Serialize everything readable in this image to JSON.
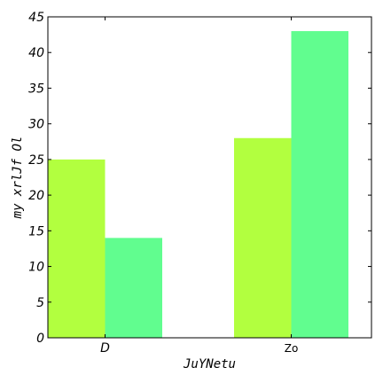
{
  "chart_data": {
    "type": "bar",
    "title": "",
    "xlabel": "JuYNetu",
    "ylabel": "my  xrlJf  Ol",
    "categories": [
      "D",
      "Zo"
    ],
    "series": [
      {
        "values": [
          25,
          28
        ],
        "color": "#b2ff3f"
      },
      {
        "values": [
          14,
          43
        ],
        "color": "#61fd8f"
      }
    ],
    "ylim": [
      0,
      45
    ],
    "yticks": [
      0,
      5,
      10,
      15,
      20,
      25,
      30,
      35,
      40,
      45
    ],
    "grid": false,
    "legend": "none"
  }
}
